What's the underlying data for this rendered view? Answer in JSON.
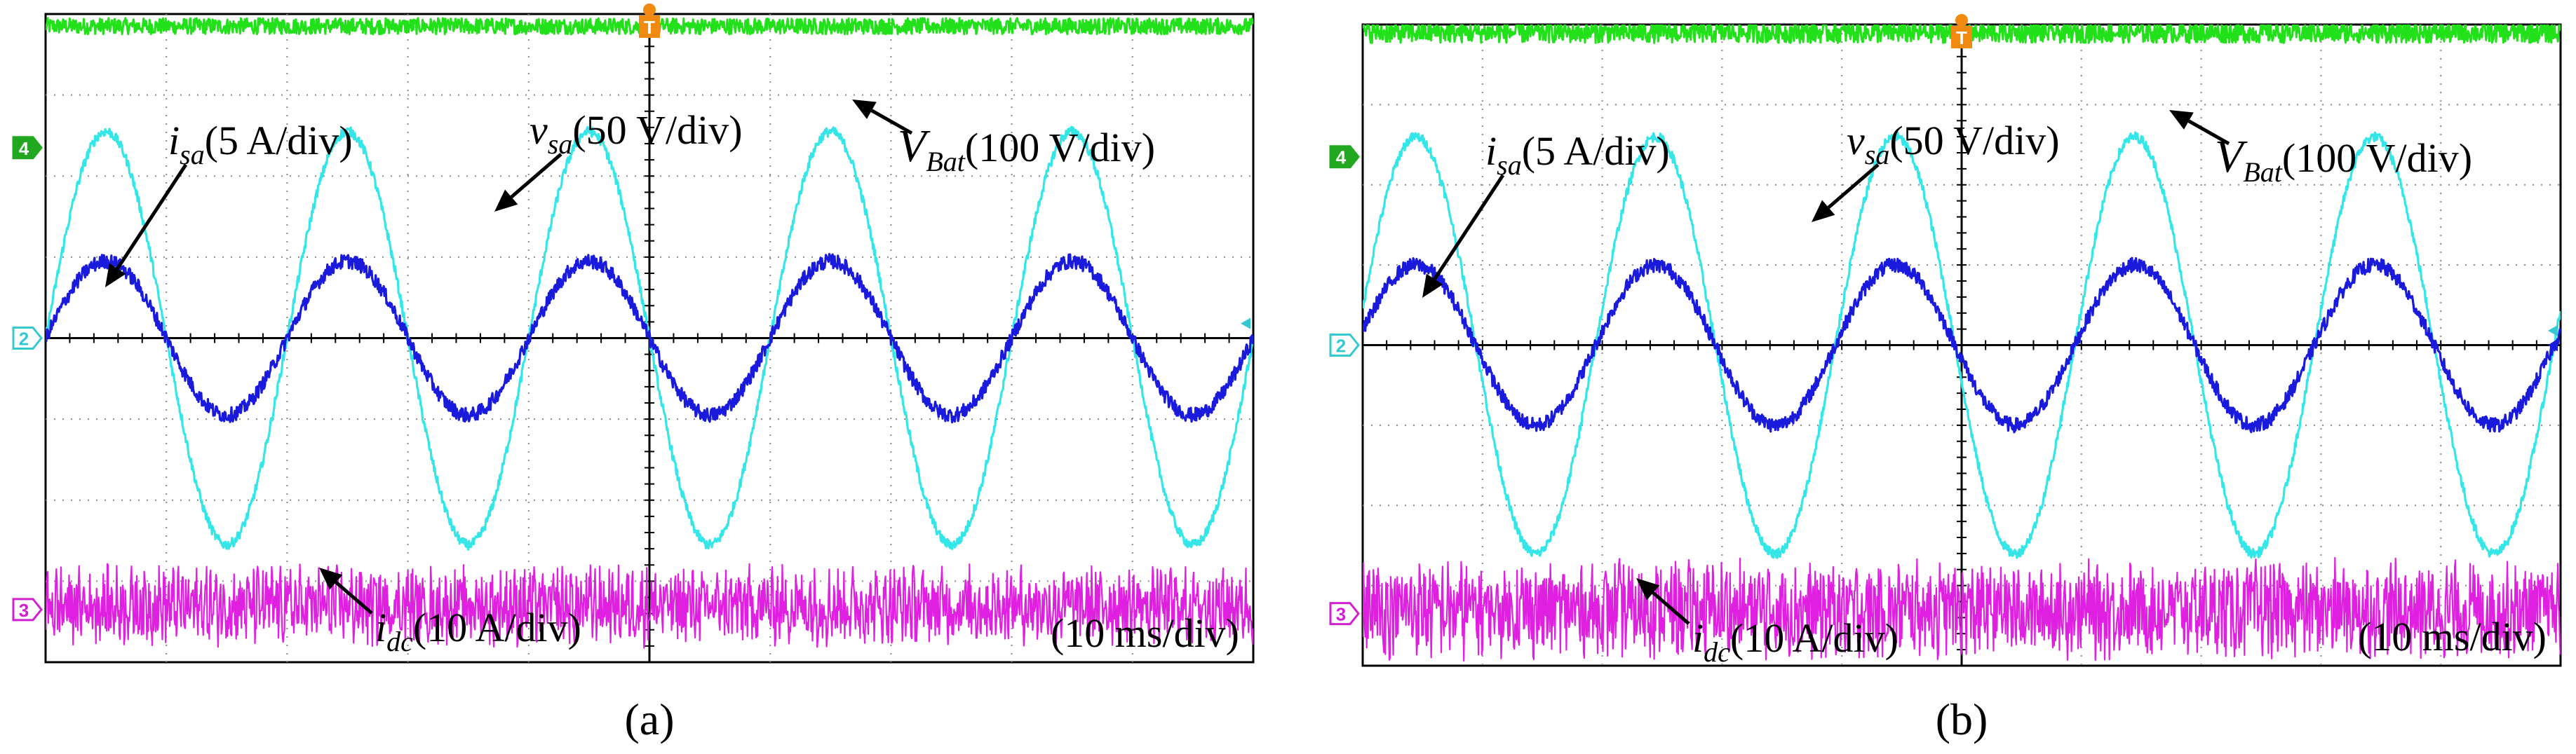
{
  "chart_data": [
    {
      "type": "line",
      "panel_label": "(a)",
      "time_scale": "(10 ms/div)",
      "x_divisions": 10,
      "x_range_ms": [
        0,
        100
      ],
      "frequency_hz": 50,
      "grid": true,
      "series": [
        {
          "name": "V_Bat",
          "symbol": "V",
          "subscript": "Bat",
          "scale": "(100 V/div)",
          "color": "#22e01a",
          "kind": "dc",
          "level_div": 3.85,
          "noise_div": 0.1
        },
        {
          "name": "v_sa",
          "symbol": "v",
          "subscript": "sa",
          "scale": "(50 V/div)",
          "color": "#35e6e8",
          "kind": "sine",
          "amplitude_div": 2.55,
          "phase_deg": 0
        },
        {
          "name": "i_sa",
          "symbol": "i",
          "subscript": "sa",
          "scale": "(5 A/div)",
          "color": "#1a1adc",
          "kind": "sine",
          "amplitude_div": 0.95,
          "phase_deg": 0
        },
        {
          "name": "i_dc",
          "symbol": "i",
          "subscript": "dc",
          "scale": "(10 A/div)",
          "color": "#e020e0",
          "kind": "ripple",
          "level_div": -3.3,
          "noise_div": 0.38
        }
      ],
      "channel_markers": [
        "4",
        "2",
        "3"
      ],
      "trigger_marker": "T"
    },
    {
      "type": "line",
      "panel_label": "(b)",
      "time_scale": "(10 ms/div)",
      "x_divisions": 10,
      "x_range_ms": [
        0,
        100
      ],
      "frequency_hz": 50,
      "grid": true,
      "series": [
        {
          "name": "V_Bat",
          "symbol": "V",
          "subscript": "Bat",
          "scale": "(100 V/div)",
          "color": "#22e01a",
          "kind": "dc",
          "level_div": 3.9,
          "noise_div": 0.13
        },
        {
          "name": "v_sa",
          "symbol": "v",
          "subscript": "sa",
          "scale": "(50 V/div)",
          "color": "#35e6e8",
          "kind": "sine",
          "amplitude_div": 2.6,
          "phase_deg": 10
        },
        {
          "name": "i_sa",
          "symbol": "i",
          "subscript": "sa",
          "scale": "(5 A/div)",
          "color": "#1a1adc",
          "kind": "sine",
          "amplitude_div": 1.0,
          "phase_deg": 10
        },
        {
          "name": "i_dc",
          "symbol": "i",
          "subscript": "dc",
          "scale": "(10 A/div)",
          "color": "#e020e0",
          "kind": "ripple",
          "level_div": -3.3,
          "noise_div": 0.5
        }
      ],
      "channel_markers": [
        "4",
        "2",
        "3"
      ],
      "trigger_marker": "T"
    }
  ]
}
